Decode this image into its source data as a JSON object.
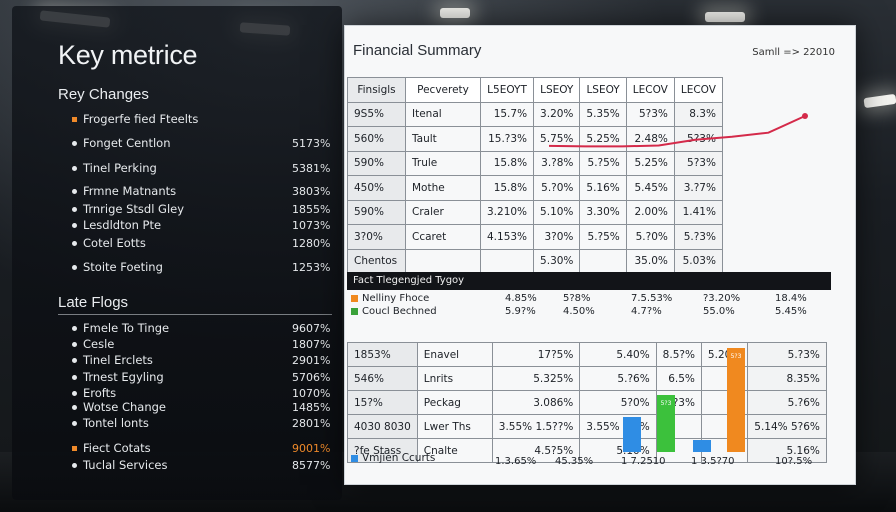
{
  "left": {
    "title": "Key metrice",
    "section1": "Rey Changes",
    "items1": [
      {
        "label": "Frogerfe fied Fteelts",
        "value": "",
        "accent": true
      },
      {
        "label": "Fonget Centlon",
        "value": "5173%"
      },
      {
        "label": "Tinel Perking",
        "value": "5381%"
      },
      {
        "label": "Frmne Matnants",
        "value": "3803%"
      },
      {
        "label": "Trnrige Stsdl Gley",
        "value": "1855%"
      },
      {
        "label": "Lesdldton Pte",
        "value": "1073%"
      },
      {
        "label": "Cotel Eotts",
        "value": "1280%"
      },
      {
        "label": "Stoite Foeting",
        "value": "1253%"
      }
    ],
    "section2": "Late Flogs",
    "items2": [
      {
        "label": "Fmele To Tinge",
        "value": "9607%"
      },
      {
        "label": "Cesle",
        "value": "1807%"
      },
      {
        "label": "Tinel Erclets",
        "value": "2901%"
      },
      {
        "label": "Trnest Egyling",
        "value": "5706%"
      },
      {
        "label": "Erofts",
        "value": "1070%"
      },
      {
        "label": "Wotse Change",
        "value": "1485%"
      },
      {
        "label": "Tontel lonts",
        "value": "2801%"
      },
      {
        "label": "Fiect Cotats",
        "value": "9001%",
        "accent": true
      },
      {
        "label": "Tuclal Services",
        "value": "8577%"
      }
    ]
  },
  "screen": {
    "title": "Financial Summary",
    "corner": "Samll => 22010",
    "header": [
      "Finsigls",
      "Pecverety",
      "L5EOYT",
      "LSEOY",
      "LSEOY",
      "LECOV",
      "LECOV"
    ],
    "rows": [
      [
        "9S5%",
        "Itenal",
        "15.7%",
        "3.20%",
        "5.35%",
        "5?3%",
        "8.3%"
      ],
      [
        "560%",
        "Tault",
        "15.?3%",
        "5.75%",
        "5.25%",
        "2.48%",
        "5?3%"
      ],
      [
        "590%",
        "Trule",
        "15.8%",
        "3.?8%",
        "5.?5%",
        "5.25%",
        "5?3%"
      ],
      [
        "450%",
        "Mothe",
        "15.8%",
        "5.?0%",
        "5.16%",
        "5.45%",
        "3.?7%"
      ],
      [
        "590%",
        "Craler",
        "3.210%",
        "5.10%",
        "3.30%",
        "2.00%",
        "1.41%"
      ],
      [
        "3?0%",
        "Ccaret",
        "4.153%",
        "3?0%",
        "5.?5%",
        "5.?0%",
        "5.?3%"
      ],
      [
        "Chentos",
        "",
        "",
        "5.30%",
        "",
        "35.0%",
        "5.03%"
      ]
    ],
    "band": "Fact Tlegengjed Tygoy",
    "legend": [
      {
        "label": "Nelliny Fhoce",
        "color": "#f0891f",
        "vals": [
          "4.85%",
          "5?8%",
          "7.5.53%",
          "?3.20%",
          "18.4%"
        ]
      },
      {
        "label": "Coucl Bechned",
        "color": "#3aa23a",
        "vals": [
          "5.9?%",
          "4.50%",
          "4.7?%",
          "55.0%",
          "5.45%"
        ]
      }
    ],
    "rows2": [
      [
        "1853%",
        "Enavel",
        "17?5%",
        "5.40%",
        "8.5?%",
        "5.20%",
        "5.?3%"
      ],
      [
        "546%",
        "Lnrits",
        "5.325%",
        "5.?6%",
        "6.5%",
        "",
        "8.35%"
      ],
      [
        "15?%",
        "Peckag",
        "3.086%",
        "5?0%",
        "5.?3%",
        "",
        "5.?6%"
      ],
      [
        "4030 8030",
        "Lwer Ths",
        "3.55% 1.5??%",
        "3.55% 2.5%",
        "",
        "",
        "5.14% 5?6%"
      ],
      [
        "?fe Stass",
        "Cnalte",
        "4.5?5%",
        "5.10%",
        "",
        "",
        "5.16%"
      ]
    ],
    "footer": {
      "label": "Vmjien Ccurts",
      "color": "#2f8de4",
      "vals": [
        "1.3.65%",
        "45.35%",
        "1   7.2510",
        "1   3.5?70",
        "10?.5%"
      ]
    },
    "bars": [
      {
        "value": 34,
        "color": "#2f8de4",
        "label": ""
      },
      {
        "value": 55,
        "color": "#3cc13c",
        "label": "5?3"
      },
      {
        "value": 12,
        "color": "#2f8de4",
        "label": ""
      },
      {
        "value": 100,
        "color": "#f0891f",
        "label": "5?3"
      }
    ],
    "trend": [
      0.32,
      0.31,
      0.31,
      0.33,
      0.46,
      0.53,
      0.62,
      1.0
    ],
    "colors": {
      "orange": "#f0891f",
      "green": "#3cc13c",
      "blue": "#2f8de4",
      "trend": "#d42a4a"
    }
  }
}
